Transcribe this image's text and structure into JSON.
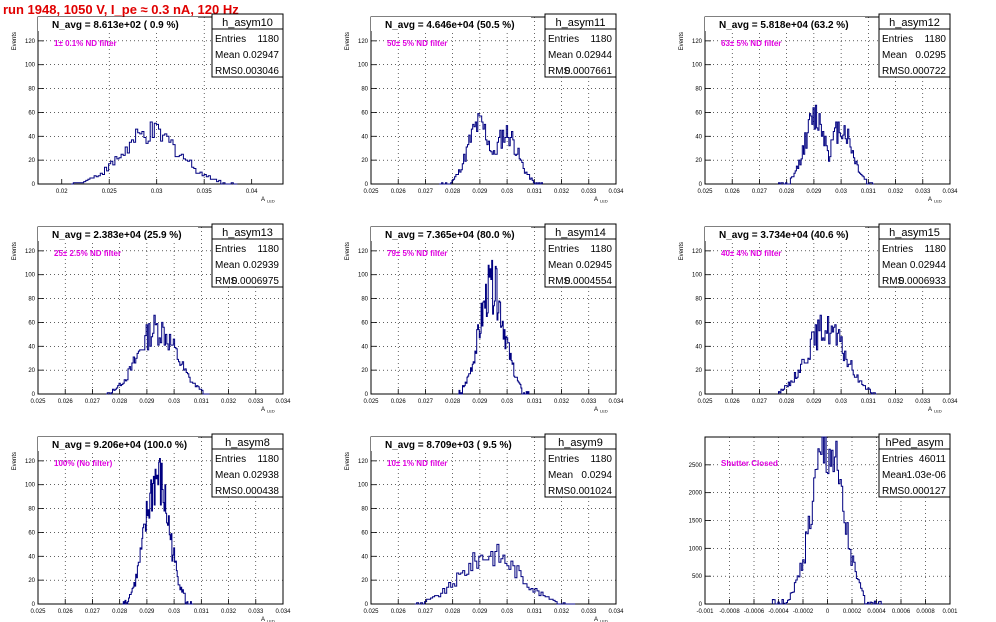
{
  "run_title": "run 1948,  1050 V, I_pe ≈ 0.3 nA, 120 Hz",
  "colors": {
    "histogram": "#000080",
    "annotation": "#e000e0",
    "title": "#e00000",
    "grid": "#000000"
  },
  "chart_data": [
    {
      "type": "bar",
      "name": "h_asym10",
      "navg": "N_avg = 8.613e+02 ( 0.9 %)",
      "filter": "1± 0.1% ND filter",
      "stats": [
        [
          "Entries",
          "1180"
        ],
        [
          "Mean",
          "0.02947"
        ],
        [
          "RMS",
          "0.003046"
        ]
      ],
      "xlim": [
        0.0175,
        0.0433
      ],
      "ylim": [
        0,
        140
      ],
      "xticks": [
        0.02,
        0.025,
        0.03,
        0.035,
        0.04
      ],
      "xtick_labels": [
        "0.02",
        "0.025",
        "0.03",
        "0.035",
        "0.04"
      ],
      "yticks": [
        0,
        20,
        40,
        60,
        80,
        100,
        120
      ],
      "ylabel": "Events",
      "xlabel": "A",
      "xlabel_sub": "LED",
      "dist": {
        "mean": 0.02947,
        "rms": 0.003046,
        "lo": 0.021,
        "hi": 0.0385,
        "peak": 42,
        "nbins": 80,
        "seed": 10
      }
    },
    {
      "type": "bar",
      "name": "h_asym11",
      "navg": "N_avg = 4.646e+04 (50.5 %)",
      "filter": "50± 5% ND filter",
      "stats": [
        [
          "Entries",
          "1180"
        ],
        [
          "Mean",
          "0.02944"
        ],
        [
          "RMS",
          "0.0007661"
        ]
      ],
      "xlim": [
        0.025,
        0.034
      ],
      "ylim": [
        0,
        140
      ],
      "xticks": [
        0.025,
        0.026,
        0.027,
        0.028,
        0.029,
        0.03,
        0.031,
        0.032,
        0.033,
        0.034
      ],
      "xtick_labels": [
        "0.025",
        "0.026",
        "0.027",
        "0.028",
        "0.029",
        "0.03",
        "0.031",
        "0.032",
        "0.033",
        "0.034"
      ],
      "yticks": [
        0,
        20,
        40,
        60,
        80,
        100,
        120
      ],
      "ylabel": "Events",
      "xlabel": "A",
      "xlabel_sub": "LED",
      "dist": {
        "mean": 0.02944,
        "rms": 0.0007661,
        "lo": 0.0275,
        "hi": 0.0313,
        "peak": 50,
        "nbins": 80,
        "seed": 11,
        "bimodal": true
      }
    },
    {
      "type": "bar",
      "name": "h_asym12",
      "navg": "N_avg = 5.818e+04 (63.2 %)",
      "filter": "63± 5% ND filter",
      "stats": [
        [
          "Entries",
          "1180"
        ],
        [
          "Mean",
          "0.0295"
        ],
        [
          "RMS",
          "0.000722"
        ]
      ],
      "xlim": [
        0.025,
        0.034
      ],
      "ylim": [
        0,
        140
      ],
      "xticks": [
        0.025,
        0.026,
        0.027,
        0.028,
        0.029,
        0.03,
        0.031,
        0.032,
        0.033,
        0.034
      ],
      "xtick_labels": [
        "0.025",
        "0.026",
        "0.027",
        "0.028",
        "0.029",
        "0.03",
        "0.031",
        "0.032",
        "0.033",
        "0.034"
      ],
      "yticks": [
        0,
        20,
        40,
        60,
        80,
        100,
        120
      ],
      "ylabel": "Events",
      "xlabel": "A",
      "xlabel_sub": "LED",
      "dist": {
        "mean": 0.0295,
        "rms": 0.000722,
        "lo": 0.0277,
        "hi": 0.0312,
        "peak": 56,
        "nbins": 80,
        "seed": 12,
        "bimodal": true
      }
    },
    {
      "type": "bar",
      "name": "h_asym13",
      "navg": "N_avg = 2.383e+04 (25.9 %)",
      "filter": "25± 2.5% ND filter",
      "stats": [
        [
          "Entries",
          "1180"
        ],
        [
          "Mean",
          "0.02939"
        ],
        [
          "RMS",
          "0.0006975"
        ]
      ],
      "xlim": [
        0.025,
        0.034
      ],
      "ylim": [
        0,
        140
      ],
      "xticks": [
        0.025,
        0.026,
        0.027,
        0.028,
        0.029,
        0.03,
        0.031,
        0.032,
        0.033,
        0.034
      ],
      "xtick_labels": [
        "0.025",
        "0.026",
        "0.027",
        "0.028",
        "0.029",
        "0.03",
        "0.031",
        "0.032",
        "0.033",
        "0.034"
      ],
      "yticks": [
        0,
        20,
        40,
        60,
        80,
        100,
        120
      ],
      "ylabel": "Events",
      "xlabel": "A",
      "xlabel_sub": "LED",
      "dist": {
        "mean": 0.02939,
        "rms": 0.0006975,
        "lo": 0.0275,
        "hi": 0.0313,
        "peak": 55,
        "nbins": 80,
        "seed": 13
      }
    },
    {
      "type": "bar",
      "name": "h_asym14",
      "navg": "N_avg = 7.365e+04 (80.0 %)",
      "filter": "79± 5% ND filter",
      "stats": [
        [
          "Entries",
          "1180"
        ],
        [
          "Mean",
          "0.02945"
        ],
        [
          "RMS",
          "0.0004554"
        ]
      ],
      "xlim": [
        0.025,
        0.034
      ],
      "ylim": [
        0,
        140
      ],
      "xticks": [
        0.025,
        0.026,
        0.027,
        0.028,
        0.029,
        0.03,
        0.031,
        0.032,
        0.033,
        0.034
      ],
      "xtick_labels": [
        "0.025",
        "0.026",
        "0.027",
        "0.028",
        "0.029",
        "0.03",
        "0.031",
        "0.032",
        "0.033",
        "0.034"
      ],
      "yticks": [
        0,
        20,
        40,
        60,
        80,
        100,
        120
      ],
      "ylabel": "Events",
      "xlabel": "A",
      "xlabel_sub": "LED",
      "dist": {
        "mean": 0.02945,
        "rms": 0.0004554,
        "lo": 0.0282,
        "hi": 0.0308,
        "peak": 90,
        "nbins": 80,
        "seed": 14
      }
    },
    {
      "type": "bar",
      "name": "h_asym15",
      "navg": "N_avg = 3.734e+04 (40.6 %)",
      "filter": "40± 4% ND filter",
      "stats": [
        [
          "Entries",
          "1180"
        ],
        [
          "Mean",
          "0.02944"
        ],
        [
          "RMS",
          "0.0006933"
        ]
      ],
      "xlim": [
        0.025,
        0.034
      ],
      "ylim": [
        0,
        140
      ],
      "xticks": [
        0.025,
        0.026,
        0.027,
        0.028,
        0.029,
        0.03,
        0.031,
        0.032,
        0.033,
        0.034
      ],
      "xtick_labels": [
        "0.025",
        "0.026",
        "0.027",
        "0.028",
        "0.029",
        "0.03",
        "0.031",
        "0.032",
        "0.033",
        "0.034"
      ],
      "yticks": [
        0,
        20,
        40,
        60,
        80,
        100,
        120
      ],
      "ylabel": "Events",
      "xlabel": "A",
      "xlabel_sub": "LED",
      "dist": {
        "mean": 0.02944,
        "rms": 0.0006933,
        "lo": 0.0277,
        "hi": 0.0313,
        "peak": 55,
        "nbins": 80,
        "seed": 15
      }
    },
    {
      "type": "bar",
      "name": "h_asym8",
      "navg": "N_avg = 9.206e+04 (100.0 %)",
      "filter": "100% (No filter)",
      "stats": [
        [
          "Entries",
          "1180"
        ],
        [
          "Mean",
          "0.02938"
        ],
        [
          "RMS",
          "0.000438"
        ]
      ],
      "xlim": [
        0.025,
        0.034
      ],
      "ylim": [
        0,
        140
      ],
      "xticks": [
        0.025,
        0.026,
        0.027,
        0.028,
        0.029,
        0.03,
        0.031,
        0.032,
        0.033,
        0.034
      ],
      "xtick_labels": [
        "0.025",
        "0.026",
        "0.027",
        "0.028",
        "0.029",
        "0.03",
        "0.031",
        "0.032",
        "0.033",
        "0.034"
      ],
      "yticks": [
        0,
        20,
        40,
        60,
        80,
        100,
        120
      ],
      "ylabel": "Events",
      "xlabel": "A",
      "xlabel_sub": "LED",
      "dist": {
        "mean": 0.02938,
        "rms": 0.000438,
        "lo": 0.0281,
        "hi": 0.0307,
        "peak": 105,
        "nbins": 80,
        "seed": 8
      }
    },
    {
      "type": "bar",
      "name": "h_asym9",
      "navg": "N_avg = 8.709e+03 ( 9.5 %)",
      "filter": "10± 1% ND filter",
      "stats": [
        [
          "Entries",
          "1180"
        ],
        [
          "Mean",
          "0.0294"
        ],
        [
          "RMS",
          "0.001024"
        ]
      ],
      "xlim": [
        0.025,
        0.034
      ],
      "ylim": [
        0,
        140
      ],
      "xticks": [
        0.025,
        0.026,
        0.027,
        0.028,
        0.029,
        0.03,
        0.031,
        0.032,
        0.033,
        0.034
      ],
      "xtick_labels": [
        "0.025",
        "0.026",
        "0.027",
        "0.028",
        "0.029",
        "0.03",
        "0.031",
        "0.032",
        "0.033",
        "0.034"
      ],
      "yticks": [
        0,
        20,
        40,
        60,
        80,
        100,
        120
      ],
      "ylabel": "Events",
      "xlabel": "A",
      "xlabel_sub": "LED",
      "dist": {
        "mean": 0.0294,
        "rms": 0.001024,
        "lo": 0.0266,
        "hi": 0.0325,
        "peak": 42,
        "nbins": 80,
        "seed": 9
      }
    },
    {
      "type": "bar",
      "name": "hPed_asym",
      "navg": "",
      "filter": "Shutter Closed",
      "stats": [
        [
          "Entries",
          "46011"
        ],
        [
          "Mean",
          "-1.03e-06"
        ],
        [
          "RMS",
          "0.000127"
        ]
      ],
      "xlim": [
        -0.001,
        0.001
      ],
      "ylim": [
        0,
        3000
      ],
      "xticks": [
        -0.001,
        -0.0008,
        -0.0006,
        -0.0004,
        -0.0002,
        0,
        0.0002,
        0.0004,
        0.0006,
        0.0008,
        0.001
      ],
      "xtick_labels": [
        "-0.001",
        "-0.0008",
        "-0.0006",
        "-0.0004",
        "-0.0002",
        "0",
        "0.0002",
        "0.0004",
        "0.0006",
        "0.0008",
        "0.001"
      ],
      "yticks": [
        0,
        500,
        1000,
        1500,
        2000,
        2500
      ],
      "ylabel": "",
      "xlabel": "",
      "xlabel_sub": "",
      "dist": {
        "mean": -1.03e-06,
        "rms": 0.000127,
        "lo": -0.00045,
        "hi": 0.00045,
        "peak": 2780,
        "nbins": 80,
        "seed": 1
      }
    }
  ]
}
